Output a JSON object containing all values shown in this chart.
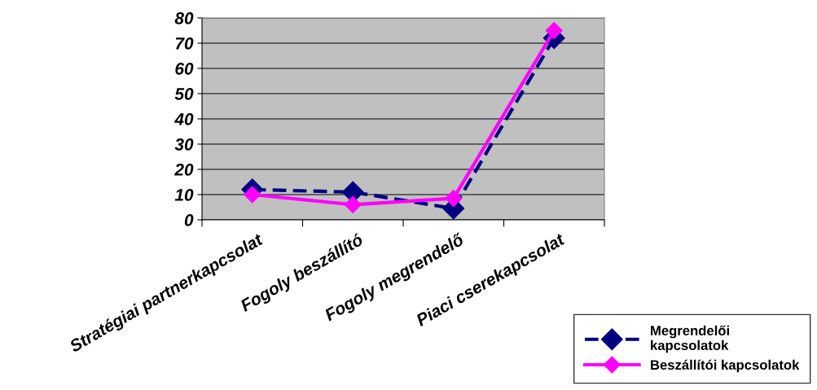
{
  "chart_data": {
    "type": "line",
    "categories": [
      "Stratégiai partnerkapcsolat",
      "Fogoly beszállító",
      "Fogoly megrendelő",
      "Piaci cserekapcsolat"
    ],
    "series": [
      {
        "name": "Megrendelői\nkapcsolatok",
        "color": "#000080",
        "line_style": "dashed",
        "values": [
          12,
          11,
          4.5,
          72
        ]
      },
      {
        "name": "Beszállítói kapcsolatok",
        "color": "#ff00ff",
        "line_style": "solid",
        "values": [
          10,
          6,
          8.5,
          75
        ]
      }
    ],
    "ylim": [
      0,
      80
    ],
    "yticks": [
      0,
      10,
      20,
      30,
      40,
      50,
      60,
      70,
      80
    ],
    "grid": "y",
    "marker": "diamond",
    "legend": "bottom right"
  }
}
